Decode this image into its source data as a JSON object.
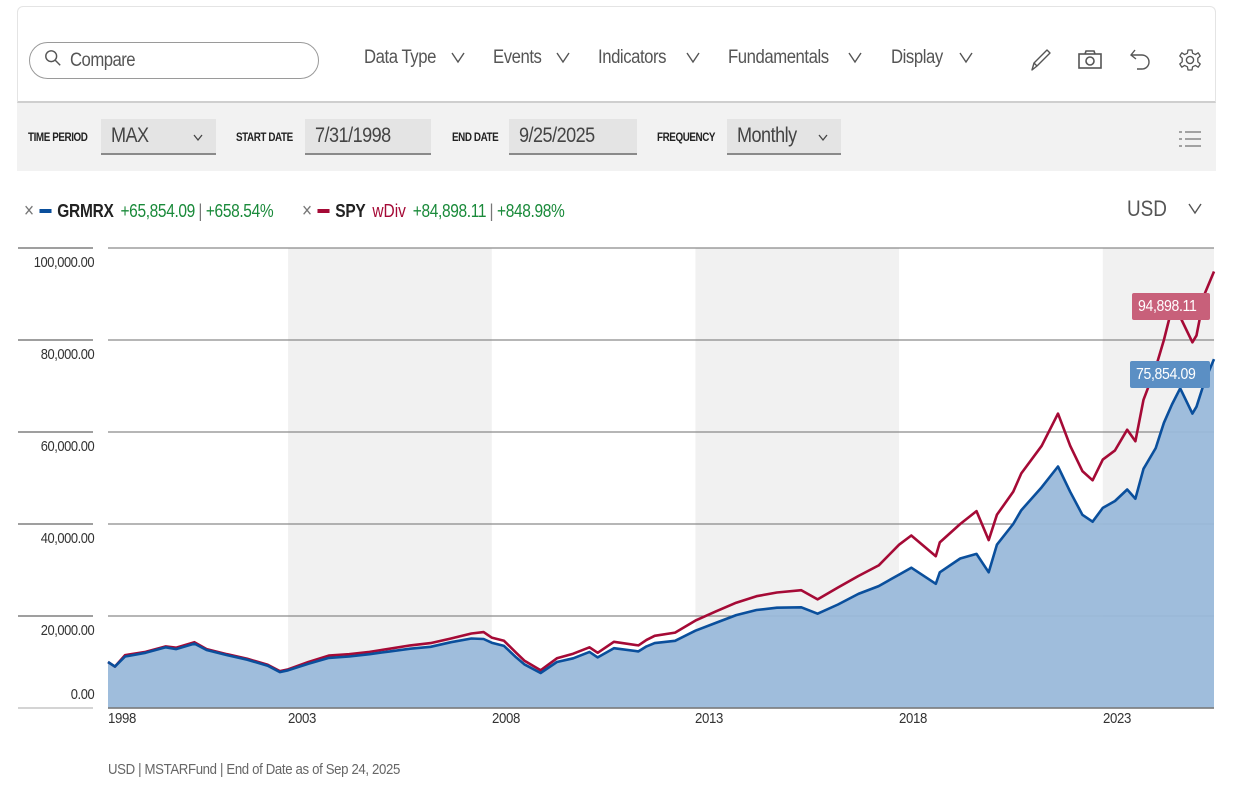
{
  "toolbar": {
    "search_placeholder": "Compare",
    "menus": [
      {
        "label": "Data Type"
      },
      {
        "label": "Events"
      },
      {
        "label": "Indicators"
      },
      {
        "label": "Fundamentals"
      },
      {
        "label": "Display"
      }
    ],
    "icons": [
      "pencil-icon",
      "camera-icon",
      "undo-icon",
      "gear-icon"
    ]
  },
  "filters": {
    "time_period_label": "TIME PERIOD",
    "time_period_value": "MAX",
    "start_date_label": "START DATE",
    "start_date_value": "7/31/1998",
    "end_date_label": "END DATE",
    "end_date_value": "9/25/2025",
    "frequency_label": "FREQUENCY",
    "frequency_value": "Monthly"
  },
  "legend": {
    "series": [
      {
        "ticker": "GRMRX",
        "suffix": "",
        "change": "+65,854.09",
        "pct": "+658.54%",
        "color": "#0a4f9c"
      },
      {
        "ticker": "SPY",
        "suffix": "wDiv",
        "change": "+84,898.11",
        "pct": "+848.98%",
        "color": "#a50a36"
      }
    ],
    "currency": "USD"
  },
  "colors": {
    "grmrx_line": "#0a4f9c",
    "grmrx_fill": "#9ab9da",
    "spy_line": "#a50a36",
    "spy_tag": "#c8607a",
    "grmrx_tag": "#5b8fc4",
    "band": "#f1f1f1",
    "gain": "#1a8a3a"
  },
  "footer": "USD | MSTARFund | End of Date as of Sep 24, 2025",
  "chart_data": {
    "type": "area",
    "title": "",
    "xlabel": "",
    "ylabel": "",
    "ylim": [
      0,
      100000
    ],
    "yticks": [
      "0.00",
      "20,000.00",
      "40,000.00",
      "60,000.00",
      "80,000.00",
      "100,000.00"
    ],
    "xticks": [
      "1998",
      "2003",
      "2008",
      "2013",
      "2018",
      "2023"
    ],
    "xlim": [
      1998.58,
      2025.73
    ],
    "grid": true,
    "legend_position": "top-left",
    "shaded_periods": [
      [
        2003,
        2008
      ],
      [
        2013,
        2018
      ],
      [
        2023,
        2025.73
      ]
    ],
    "x": [
      1998.58,
      1998.75,
      1999.0,
      1999.5,
      2000.0,
      2000.25,
      2000.7,
      2001.0,
      2001.5,
      2002.0,
      2002.5,
      2002.8,
      2003.0,
      2003.5,
      2004.0,
      2004.5,
      2005.0,
      2005.5,
      2006.0,
      2006.5,
      2007.0,
      2007.5,
      2007.8,
      2008.0,
      2008.3,
      2008.6,
      2008.8,
      2009.2,
      2009.6,
      2010.0,
      2010.4,
      2010.6,
      2011.0,
      2011.6,
      2011.8,
      2012.0,
      2012.5,
      2013.0,
      2013.5,
      2014.0,
      2014.5,
      2015.0,
      2015.6,
      2016.0,
      2016.5,
      2017.0,
      2017.5,
      2018.0,
      2018.3,
      2018.9,
      2019.0,
      2019.5,
      2019.9,
      2020.2,
      2020.4,
      2020.8,
      2021.0,
      2021.5,
      2021.9,
      2022.2,
      2022.5,
      2022.75,
      2023.0,
      2023.3,
      2023.6,
      2023.8,
      2024.0,
      2024.3,
      2024.5,
      2024.7,
      2024.9,
      2025.2,
      2025.3,
      2025.5,
      2025.73
    ],
    "series": [
      {
        "name": "GRMRX",
        "final_value": "75,854.09",
        "values": [
          10000,
          9000,
          11200,
          12000,
          13200,
          12800,
          14000,
          12600,
          11500,
          10500,
          9200,
          7800,
          8200,
          9600,
          10900,
          11200,
          11700,
          12300,
          12900,
          13300,
          14300,
          15100,
          15000,
          14200,
          13500,
          11000,
          9500,
          7600,
          10000,
          10800,
          12200,
          11000,
          13000,
          12300,
          13400,
          14100,
          14600,
          16800,
          18500,
          20200,
          21300,
          21800,
          21900,
          20500,
          22500,
          24800,
          26500,
          29000,
          30500,
          27000,
          29500,
          32500,
          33500,
          29500,
          35500,
          40000,
          43000,
          48000,
          52500,
          47000,
          42000,
          40500,
          43500,
          45000,
          47500,
          45500,
          52000,
          56500,
          62000,
          66000,
          69500,
          64000,
          65500,
          71000,
          75854
        ]
      },
      {
        "name": "SPY wDiv",
        "final_value": "94,898.11",
        "values": [
          10000,
          9000,
          11500,
          12200,
          13400,
          13100,
          14300,
          12800,
          11700,
          10700,
          9400,
          8000,
          8400,
          10000,
          11400,
          11700,
          12200,
          12900,
          13600,
          14100,
          15100,
          16200,
          16500,
          15300,
          14600,
          12000,
          10300,
          8200,
          10800,
          11800,
          13200,
          12000,
          14400,
          13600,
          14800,
          15700,
          16400,
          19000,
          21000,
          22900,
          24300,
          25100,
          25600,
          23600,
          26200,
          28700,
          31000,
          35500,
          37500,
          33000,
          36000,
          40000,
          42800,
          36500,
          42000,
          47000,
          51000,
          57000,
          64000,
          57000,
          51500,
          49500,
          54000,
          56000,
          60500,
          58000,
          67000,
          74000,
          80000,
          87000,
          85000,
          79500,
          81000,
          90000,
          94898
        ]
      }
    ]
  }
}
